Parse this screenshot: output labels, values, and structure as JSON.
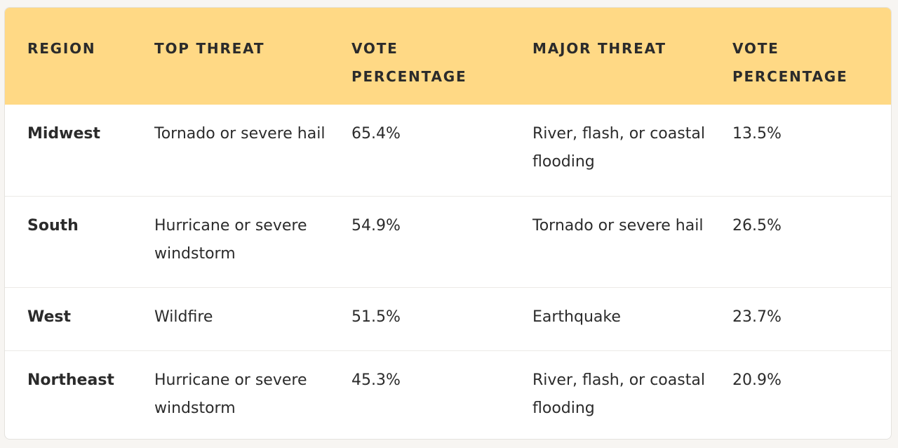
{
  "table": {
    "headers": [
      "REGION",
      "TOP THREAT",
      "VOTE PERCENTAGE",
      "MAJOR THREAT",
      "VOTE PERCENTAGE"
    ],
    "rows": [
      [
        "Midwest",
        "Tornado or severe hail",
        "65.4%",
        "River, flash, or coastal flooding",
        "13.5%"
      ],
      [
        "South",
        "Hurricane or severe windstorm",
        "54.9%",
        "Tornado or severe hail",
        "26.5%"
      ],
      [
        "West",
        "Wildfire",
        "51.5%",
        "Earthquake",
        "23.7%"
      ],
      [
        "Northeast",
        "Hurricane or severe windstorm",
        "45.3%",
        "River, flash, or coastal flooding",
        "20.9%"
      ]
    ]
  },
  "colors": {
    "header_background": "#ffd985",
    "text": "#2b2b2b",
    "row_divider": "#eceae6"
  }
}
